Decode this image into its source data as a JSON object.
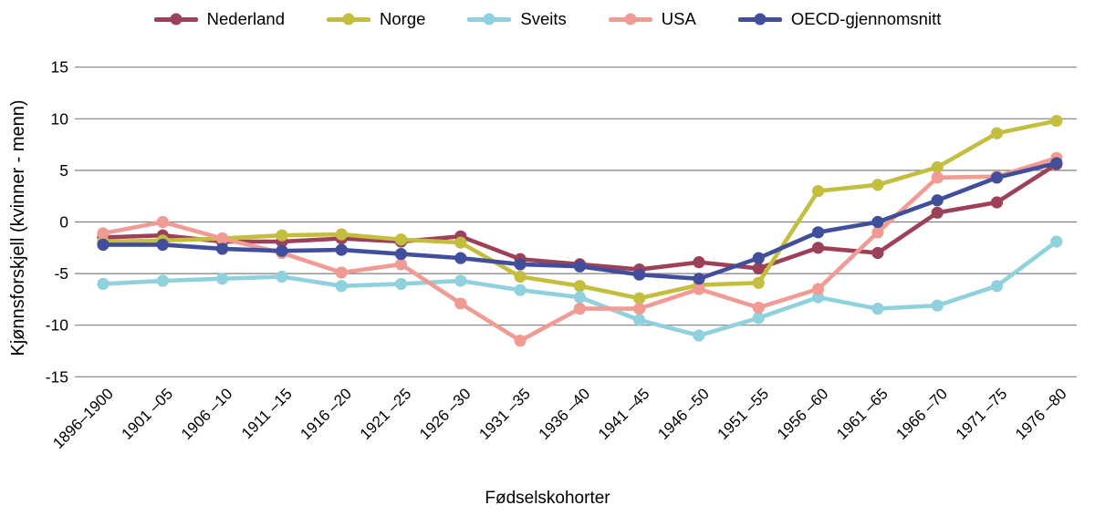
{
  "chart_data": {
    "type": "line",
    "title": "",
    "xlabel": "Fødselskohorter",
    "ylabel": "Kjønnsforskjell (kvinner - menn)",
    "ylim": [
      -15,
      15
    ],
    "yticks": [
      15,
      10,
      5,
      0,
      -5,
      -10,
      -15
    ],
    "grid": "horizontal-only",
    "legend_position": "top",
    "marker": "circle",
    "categories": [
      "1896–1900",
      "1901 –05",
      "1906 –10",
      "1911 –15",
      "1916 –20",
      "1921 –25",
      "1926 –30",
      "1931 –35",
      "1936 –40",
      "1941 –45",
      "1946 –50",
      "1951 –55",
      "1956 –60",
      "1961 –65",
      "1966 –70",
      "1971 –75",
      "1976 –80"
    ],
    "series": [
      {
        "name": "Nederland",
        "color": "#9c4157",
        "values": [
          -1.5,
          -1.3,
          -1.9,
          -1.9,
          -1.6,
          -1.9,
          -1.4,
          -3.6,
          -4.1,
          -4.6,
          -3.9,
          -4.5,
          -2.5,
          -3.0,
          0.9,
          1.9,
          5.6
        ]
      },
      {
        "name": "Norge",
        "color": "#c3be3e",
        "values": [
          -1.9,
          -1.8,
          -1.6,
          -1.3,
          -1.2,
          -1.7,
          -2.0,
          -5.3,
          -6.2,
          -7.4,
          -6.1,
          -5.9,
          3.0,
          3.6,
          5.3,
          8.6,
          9.8
        ]
      },
      {
        "name": "Sveits",
        "color": "#8fd1dc",
        "values": [
          -6.0,
          -5.7,
          -5.5,
          -5.3,
          -6.2,
          -6.0,
          -5.7,
          -6.6,
          -7.3,
          -9.5,
          -11.0,
          -9.3,
          -7.3,
          -8.4,
          -8.1,
          -6.2,
          -1.9
        ]
      },
      {
        "name": "USA",
        "color": "#f09c95",
        "values": [
          -1.1,
          0.0,
          -1.6,
          -3.0,
          -4.9,
          -4.1,
          -7.9,
          -11.5,
          -8.4,
          -8.4,
          -6.5,
          -8.3,
          -6.5,
          -1.0,
          4.3,
          4.4,
          6.2
        ]
      },
      {
        "name": "OECD-gjennomsnitt",
        "color": "#414e9b",
        "values": [
          -2.2,
          -2.2,
          -2.6,
          -2.8,
          -2.7,
          -3.1,
          -3.5,
          -4.1,
          -4.3,
          -5.1,
          -5.5,
          -3.5,
          -1.0,
          0.0,
          2.1,
          4.3,
          5.7
        ]
      }
    ]
  }
}
